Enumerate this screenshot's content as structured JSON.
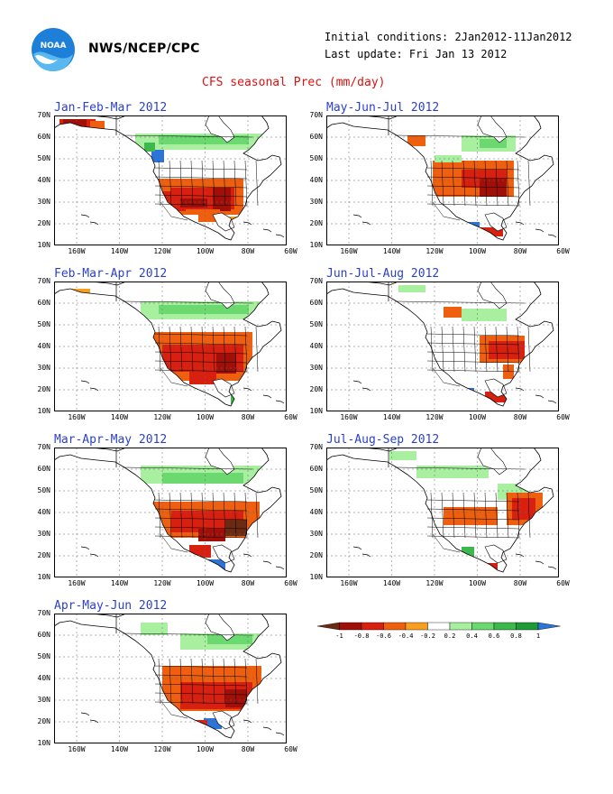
{
  "header": {
    "org": "NWS/NCEP/CPC",
    "initial_conditions": "Initial conditions: 2Jan2012-11Jan2012",
    "last_update": "Last update: Fri Jan 13 2012",
    "title": "CFS seasonal Prec (mm/day)",
    "logo_text": "NOAA"
  },
  "axes": {
    "lat_labels": [
      "70N",
      "60N",
      "50N",
      "40N",
      "30N",
      "20N",
      "10N"
    ],
    "lon_labels": [
      "160W",
      "140W",
      "120W",
      "100W",
      "80W",
      "60W"
    ]
  },
  "panels": [
    {
      "title": "Jan-Feb-Mar 2012"
    },
    {
      "title": "May-Jun-Jul 2012"
    },
    {
      "title": "Feb-Mar-Apr 2012"
    },
    {
      "title": "Jun-Jul-Aug 2012"
    },
    {
      "title": "Mar-Apr-May 2012"
    },
    {
      "title": "Jul-Aug-Sep 2012"
    },
    {
      "title": "Apr-May-Jun 2012"
    }
  ],
  "colorbar": {
    "labels": [
      "-1",
      "-0.8",
      "-0.6",
      "-0.4",
      "-0.2",
      "0.2",
      "0.4",
      "0.6",
      "0.8",
      "1"
    ],
    "colors": [
      "#6b2a12",
      "#a01008",
      "#d82010",
      "#ee6010",
      "#f7a020",
      "#ffffff",
      "#a8f0a0",
      "#6cd870",
      "#3cb84c",
      "#1e9a36",
      "#2c74d8"
    ]
  },
  "legend_colors": {
    "dark_brown": "#6b2a12",
    "dark_red": "#a01008",
    "red": "#d82010",
    "orange": "#ee6010",
    "light_orange": "#f7a020",
    "light_green": "#a8f0a0",
    "green": "#6cd870",
    "dark_green": "#3cb84c",
    "blue": "#2c74d8"
  }
}
